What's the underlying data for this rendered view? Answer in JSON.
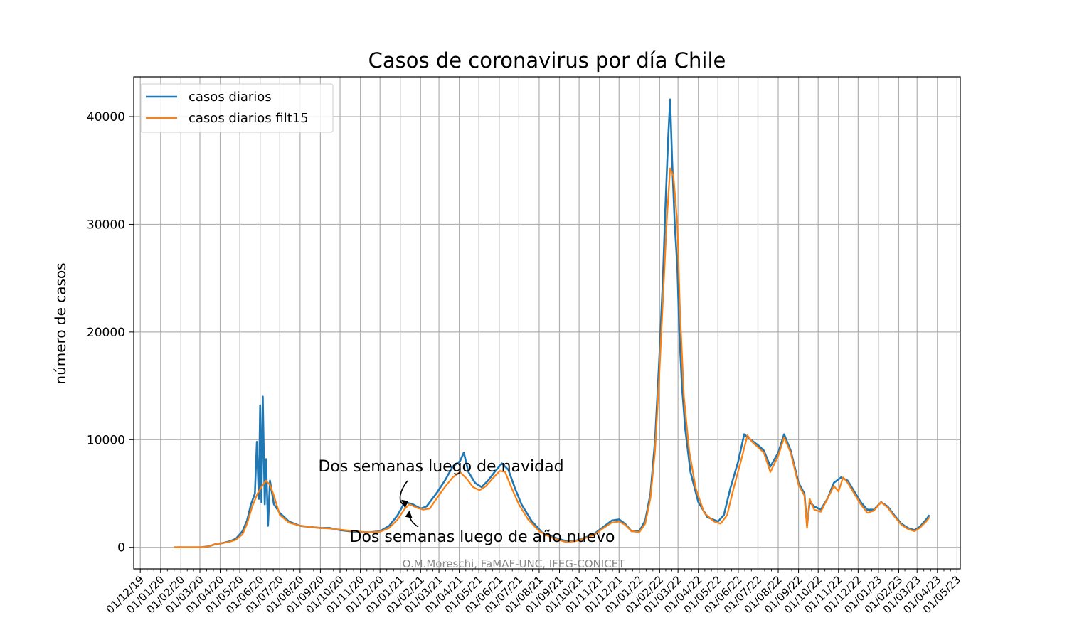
{
  "chart_data": {
    "type": "line",
    "title": "Casos de coronavirus por día Chile",
    "xlabel": "",
    "ylabel": "número de casos",
    "x_ticks": [
      "01/12/19",
      "01/01/20",
      "01/02/20",
      "01/03/20",
      "01/04/20",
      "01/05/20",
      "01/06/20",
      "01/07/20",
      "01/08/20",
      "01/09/20",
      "01/10/20",
      "01/11/20",
      "01/12/20",
      "01/01/21",
      "01/02/21",
      "01/03/21",
      "01/04/21",
      "01/05/21",
      "01/06/21",
      "01/07/21",
      "01/08/21",
      "01/09/21",
      "01/10/21",
      "01/11/21",
      "01/12/21",
      "01/01/22",
      "01/02/22",
      "01/03/22",
      "01/04/22",
      "01/05/22",
      "01/06/22",
      "01/07/22",
      "01/08/22",
      "01/09/22",
      "01/10/22",
      "01/11/22",
      "01/12/22",
      "01/01/23",
      "01/02/23",
      "01/03/23",
      "01/04/23",
      "01/05/23"
    ],
    "y_ticks": [
      0,
      10000,
      20000,
      30000,
      40000
    ],
    "xlim": [
      "2019-11-21",
      "2023-05-06"
    ],
    "ylim": [
      -2000,
      43700
    ],
    "grid": true,
    "legend_position": "top-left",
    "series": [
      {
        "name": "casos diarios",
        "color": "#1f77b4",
        "points": [
          [
            "2020-01-21",
            0
          ],
          [
            "2020-02-21",
            0
          ],
          [
            "2020-03-03",
            0
          ],
          [
            "2020-03-15",
            100
          ],
          [
            "2020-03-25",
            300
          ],
          [
            "2020-04-05",
            400
          ],
          [
            "2020-04-15",
            550
          ],
          [
            "2020-04-25",
            800
          ],
          [
            "2020-05-05",
            1500
          ],
          [
            "2020-05-12",
            2500
          ],
          [
            "2020-05-18",
            4000
          ],
          [
            "2020-05-24",
            5000
          ],
          [
            "2020-05-27",
            9800
          ],
          [
            "2020-05-30",
            4500
          ],
          [
            "2020-06-01",
            13200
          ],
          [
            "2020-06-03",
            4200
          ],
          [
            "2020-06-05",
            14000
          ],
          [
            "2020-06-08",
            4000
          ],
          [
            "2020-06-10",
            8200
          ],
          [
            "2020-06-13",
            2000
          ],
          [
            "2020-06-16",
            6200
          ],
          [
            "2020-06-22",
            4000
          ],
          [
            "2020-07-01",
            3200
          ],
          [
            "2020-07-15",
            2400
          ],
          [
            "2020-08-01",
            2000
          ],
          [
            "2020-08-15",
            1900
          ],
          [
            "2020-09-01",
            1800
          ],
          [
            "2020-09-15",
            1800
          ],
          [
            "2020-10-01",
            1600
          ],
          [
            "2020-10-15",
            1500
          ],
          [
            "2020-11-01",
            1400
          ],
          [
            "2020-11-15",
            1400
          ],
          [
            "2020-12-01",
            1500
          ],
          [
            "2020-12-15",
            2000
          ],
          [
            "2020-12-28",
            3000
          ],
          [
            "2021-01-08",
            4200
          ],
          [
            "2021-01-20",
            4000
          ],
          [
            "2021-02-01",
            3600
          ],
          [
            "2021-02-10",
            3800
          ],
          [
            "2021-02-25",
            5000
          ],
          [
            "2021-03-10",
            6200
          ],
          [
            "2021-03-22",
            7500
          ],
          [
            "2021-04-02",
            8000
          ],
          [
            "2021-04-08",
            8800
          ],
          [
            "2021-04-15",
            7000
          ],
          [
            "2021-04-25",
            6000
          ],
          [
            "2021-05-05",
            5600
          ],
          [
            "2021-05-15",
            6200
          ],
          [
            "2021-05-25",
            7000
          ],
          [
            "2021-06-05",
            7800
          ],
          [
            "2021-06-15",
            7200
          ],
          [
            "2021-06-25",
            5500
          ],
          [
            "2021-07-05",
            4000
          ],
          [
            "2021-07-20",
            2500
          ],
          [
            "2021-08-05",
            1400
          ],
          [
            "2021-08-25",
            900
          ],
          [
            "2021-09-10",
            600
          ],
          [
            "2021-09-25",
            600
          ],
          [
            "2021-10-10",
            900
          ],
          [
            "2021-10-25",
            1300
          ],
          [
            "2021-11-05",
            1800
          ],
          [
            "2021-11-20",
            2500
          ],
          [
            "2021-12-01",
            2600
          ],
          [
            "2021-12-10",
            2200
          ],
          [
            "2021-12-20",
            1500
          ],
          [
            "2022-01-01",
            1500
          ],
          [
            "2022-01-10",
            2500
          ],
          [
            "2022-01-18",
            5000
          ],
          [
            "2022-01-25",
            10000
          ],
          [
            "2022-01-31",
            17000
          ],
          [
            "2022-02-06",
            25000
          ],
          [
            "2022-02-10",
            32000
          ],
          [
            "2022-02-14",
            38000
          ],
          [
            "2022-02-17",
            41600
          ],
          [
            "2022-02-20",
            36000
          ],
          [
            "2022-02-24",
            30000
          ],
          [
            "2022-02-28",
            26000
          ],
          [
            "2022-03-03",
            20000
          ],
          [
            "2022-03-07",
            15000
          ],
          [
            "2022-03-12",
            11000
          ],
          [
            "2022-03-20",
            7000
          ],
          [
            "2022-04-01",
            4200
          ],
          [
            "2022-04-15",
            2800
          ],
          [
            "2022-05-01",
            2400
          ],
          [
            "2022-05-10",
            3000
          ],
          [
            "2022-05-20",
            5500
          ],
          [
            "2022-06-01",
            8000
          ],
          [
            "2022-06-10",
            10500
          ],
          [
            "2022-06-20",
            10000
          ],
          [
            "2022-07-01",
            9500
          ],
          [
            "2022-07-10",
            9000
          ],
          [
            "2022-07-20",
            7500
          ],
          [
            "2022-08-01",
            8800
          ],
          [
            "2022-08-10",
            10500
          ],
          [
            "2022-08-20",
            9000
          ],
          [
            "2022-09-01",
            6000
          ],
          [
            "2022-09-10",
            5000
          ],
          [
            "2022-09-14",
            2000
          ],
          [
            "2022-09-18",
            4200
          ],
          [
            "2022-09-25",
            3800
          ],
          [
            "2022-10-05",
            3500
          ],
          [
            "2022-10-15",
            4500
          ],
          [
            "2022-10-25",
            6000
          ],
          [
            "2022-11-05",
            6500
          ],
          [
            "2022-11-15",
            6200
          ],
          [
            "2022-11-25",
            5200
          ],
          [
            "2022-12-05",
            4200
          ],
          [
            "2022-12-15",
            3500
          ],
          [
            "2022-12-25",
            3500
          ],
          [
            "2023-01-05",
            4200
          ],
          [
            "2023-01-15",
            3800
          ],
          [
            "2023-01-25",
            3000
          ],
          [
            "2023-02-05",
            2200
          ],
          [
            "2023-02-15",
            1800
          ],
          [
            "2023-02-25",
            1600
          ],
          [
            "2023-03-05",
            1900
          ],
          [
            "2023-03-15",
            2600
          ],
          [
            "2023-03-20",
            3000
          ]
        ]
      },
      {
        "name": "casos diarios filt15",
        "color": "#ff7f0e",
        "points": [
          [
            "2020-01-21",
            0
          ],
          [
            "2020-03-03",
            0
          ],
          [
            "2020-03-15",
            100
          ],
          [
            "2020-03-25",
            300
          ],
          [
            "2020-04-05",
            400
          ],
          [
            "2020-04-15",
            500
          ],
          [
            "2020-04-25",
            700
          ],
          [
            "2020-05-05",
            1200
          ],
          [
            "2020-05-12",
            2200
          ],
          [
            "2020-05-20",
            3800
          ],
          [
            "2020-05-28",
            5000
          ],
          [
            "2020-06-04",
            5700
          ],
          [
            "2020-06-10",
            6200
          ],
          [
            "2020-06-16",
            5800
          ],
          [
            "2020-06-22",
            4800
          ],
          [
            "2020-07-01",
            3000
          ],
          [
            "2020-07-15",
            2300
          ],
          [
            "2020-08-01",
            2000
          ],
          [
            "2020-08-15",
            1900
          ],
          [
            "2020-09-01",
            1800
          ],
          [
            "2020-09-15",
            1750
          ],
          [
            "2020-10-01",
            1650
          ],
          [
            "2020-10-15",
            1550
          ],
          [
            "2020-11-01",
            1450
          ],
          [
            "2020-11-15",
            1400
          ],
          [
            "2020-12-01",
            1450
          ],
          [
            "2020-12-15",
            1800
          ],
          [
            "2020-12-28",
            2600
          ],
          [
            "2021-01-08",
            3600
          ],
          [
            "2021-01-15",
            4000
          ],
          [
            "2021-01-25",
            3700
          ],
          [
            "2021-02-05",
            3500
          ],
          [
            "2021-02-15",
            3600
          ],
          [
            "2021-02-25",
            4500
          ],
          [
            "2021-03-10",
            5600
          ],
          [
            "2021-03-22",
            6500
          ],
          [
            "2021-04-02",
            7000
          ],
          [
            "2021-04-12",
            6400
          ],
          [
            "2021-04-22",
            5600
          ],
          [
            "2021-05-02",
            5300
          ],
          [
            "2021-05-12",
            5700
          ],
          [
            "2021-05-22",
            6400
          ],
          [
            "2021-06-02",
            7100
          ],
          [
            "2021-06-10",
            7000
          ],
          [
            "2021-06-20",
            5500
          ],
          [
            "2021-07-01",
            4000
          ],
          [
            "2021-07-15",
            2600
          ],
          [
            "2021-08-01",
            1500
          ],
          [
            "2021-08-20",
            900
          ],
          [
            "2021-09-10",
            500
          ],
          [
            "2021-09-25",
            550
          ],
          [
            "2021-10-10",
            850
          ],
          [
            "2021-10-25",
            1200
          ],
          [
            "2021-11-05",
            1700
          ],
          [
            "2021-11-20",
            2300
          ],
          [
            "2021-12-01",
            2400
          ],
          [
            "2021-12-10",
            2100
          ],
          [
            "2021-12-20",
            1500
          ],
          [
            "2022-01-01",
            1400
          ],
          [
            "2022-01-10",
            2200
          ],
          [
            "2022-01-18",
            4600
          ],
          [
            "2022-01-25",
            9000
          ],
          [
            "2022-01-31",
            15500
          ],
          [
            "2022-02-06",
            23000
          ],
          [
            "2022-02-12",
            30500
          ],
          [
            "2022-02-17",
            35200
          ],
          [
            "2022-02-22",
            34500
          ],
          [
            "2022-02-28",
            30000
          ],
          [
            "2022-03-04",
            22000
          ],
          [
            "2022-03-10",
            14000
          ],
          [
            "2022-03-18",
            9000
          ],
          [
            "2022-03-28",
            5500
          ],
          [
            "2022-04-10",
            3200
          ],
          [
            "2022-04-25",
            2400
          ],
          [
            "2022-05-05",
            2200
          ],
          [
            "2022-05-15",
            3000
          ],
          [
            "2022-05-25",
            5500
          ],
          [
            "2022-06-05",
            8000
          ],
          [
            "2022-06-15",
            10400
          ],
          [
            "2022-06-22",
            9800
          ],
          [
            "2022-07-01",
            9300
          ],
          [
            "2022-07-10",
            8800
          ],
          [
            "2022-07-20",
            7000
          ],
          [
            "2022-08-01",
            8500
          ],
          [
            "2022-08-10",
            10200
          ],
          [
            "2022-08-20",
            8800
          ],
          [
            "2022-09-01",
            5800
          ],
          [
            "2022-09-10",
            4800
          ],
          [
            "2022-09-14",
            1800
          ],
          [
            "2022-09-18",
            4500
          ],
          [
            "2022-09-25",
            3500
          ],
          [
            "2022-10-05",
            3300
          ],
          [
            "2022-10-15",
            4500
          ],
          [
            "2022-10-25",
            5700
          ],
          [
            "2022-11-01",
            5200
          ],
          [
            "2022-11-08",
            6500
          ],
          [
            "2022-11-15",
            6000
          ],
          [
            "2022-11-25",
            5000
          ],
          [
            "2022-12-05",
            4000
          ],
          [
            "2022-12-15",
            3200
          ],
          [
            "2022-12-25",
            3400
          ],
          [
            "2023-01-05",
            4200
          ],
          [
            "2023-01-15",
            3700
          ],
          [
            "2023-01-25",
            2900
          ],
          [
            "2023-02-05",
            2100
          ],
          [
            "2023-02-15",
            1700
          ],
          [
            "2023-02-25",
            1500
          ],
          [
            "2023-03-05",
            1800
          ],
          [
            "2023-03-15",
            2400
          ],
          [
            "2023-03-20",
            2800
          ]
        ]
      }
    ],
    "annotations": [
      {
        "text": "Dos semanas luego de navidad",
        "date": "2021-01-08",
        "y": 3500
      },
      {
        "text": "Dos semanas luego de año nuevo",
        "date": "2021-01-15",
        "y": 3500
      }
    ],
    "credit": "O.M.Moreschi, FaMAF-UNC, IFEG-CONICET"
  }
}
